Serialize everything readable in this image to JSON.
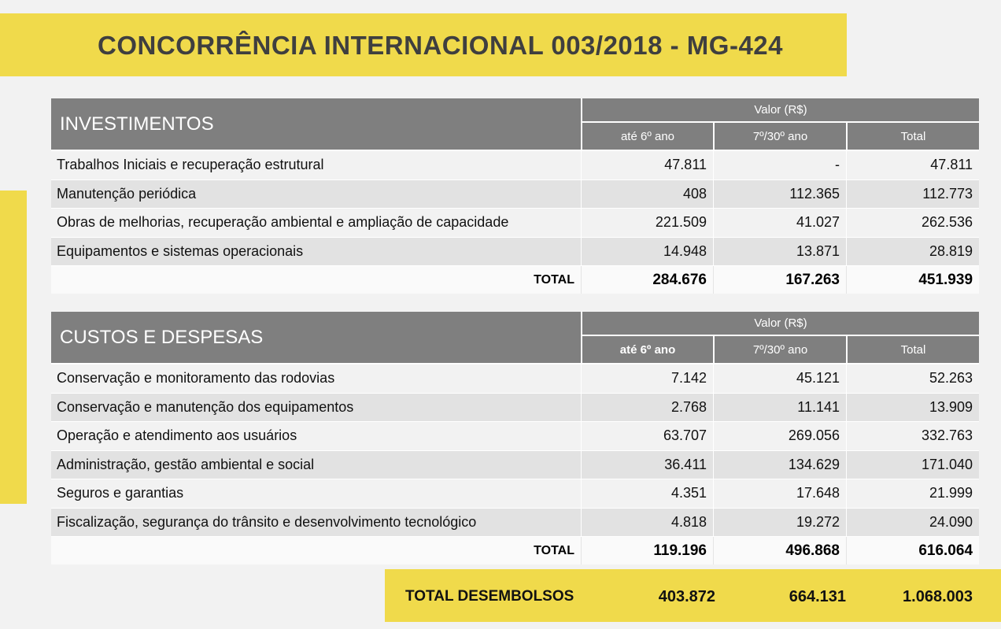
{
  "title": "CONCORRÊNCIA INTERNACIONAL 003/2018 - MG-424",
  "colors": {
    "accent": "#f0da4b",
    "header": "#7f7f7f"
  },
  "investimentos": {
    "heading": "INVESTIMENTOS",
    "value_header": "Valor (R$)",
    "columns": [
      "até 6º ano",
      "7º/30º ano",
      "Total"
    ],
    "rows": [
      {
        "label": "Trabalhos Iniciais e recuperação estrutural",
        "v": [
          "47.811",
          "-",
          "47.811"
        ]
      },
      {
        "label": "Manutenção periódica",
        "v": [
          "408",
          "112.365",
          "112.773"
        ]
      },
      {
        "label": "Obras de melhorias, recuperação ambiental e ampliação de capacidade",
        "v": [
          "221.509",
          "41.027",
          "262.536"
        ]
      },
      {
        "label": "Equipamentos e sistemas operacionais",
        "v": [
          "14.948",
          "13.871",
          "28.819"
        ]
      }
    ],
    "total": {
      "label": "TOTAL",
      "v": [
        "284.676",
        "167.263",
        "451.939"
      ]
    }
  },
  "custos": {
    "heading": "CUSTOS E DESPESAS",
    "value_header": "Valor (R$)",
    "columns": [
      "até 6º ano",
      "7º/30º ano",
      "Total"
    ],
    "rows": [
      {
        "label": "Conservação e monitoramento das rodovias",
        "v": [
          "7.142",
          "45.121",
          "52.263"
        ]
      },
      {
        "label": "Conservação e manutenção dos equipamentos",
        "v": [
          "2.768",
          "11.141",
          "13.909"
        ]
      },
      {
        "label": "Operação e atendimento aos usuários",
        "v": [
          "63.707",
          "269.056",
          "332.763"
        ]
      },
      {
        "label": "Administração, gestão ambiental e social",
        "v": [
          "36.411",
          "134.629",
          "171.040"
        ]
      },
      {
        "label": "Seguros e garantias",
        "v": [
          "4.351",
          "17.648",
          "21.999"
        ]
      },
      {
        "label": "Fiscalização, segurança do trânsito e desenvolvimento tecnológico",
        "v": [
          "4.818",
          "19.272",
          "24.090"
        ]
      }
    ],
    "total": {
      "label": "TOTAL",
      "v": [
        "119.196",
        "496.868",
        "616.064"
      ]
    }
  },
  "grand_total": {
    "label": "TOTAL DESEMBOLSOS",
    "v": [
      "403.872",
      "664.131",
      "1.068.003"
    ]
  }
}
